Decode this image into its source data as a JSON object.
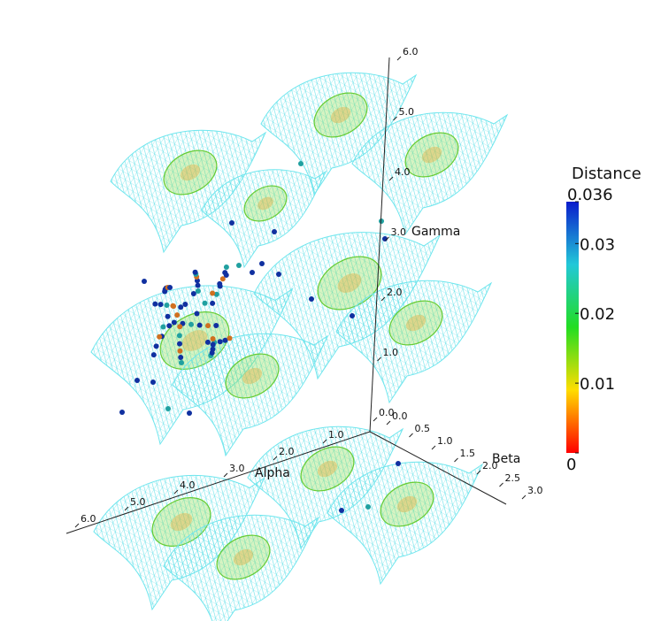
{
  "axes": {
    "alpha": {
      "label": "Alpha",
      "ticks": [
        {
          "value": 1,
          "label": "1.0"
        },
        {
          "value": 2,
          "label": "2.0"
        },
        {
          "value": 3,
          "label": "3.0"
        },
        {
          "value": 4,
          "label": "4.0"
        },
        {
          "value": 5,
          "label": "5.0"
        },
        {
          "value": 6,
          "label": "6.0"
        }
      ]
    },
    "beta": {
      "label": "Beta",
      "ticks": [
        {
          "value": 0,
          "label": "0.0"
        },
        {
          "value": 0.5,
          "label": "0.5"
        },
        {
          "value": 1,
          "label": "1.0"
        },
        {
          "value": 1.5,
          "label": "1.5"
        },
        {
          "value": 2,
          "label": "2.0"
        },
        {
          "value": 2.5,
          "label": "2.5"
        },
        {
          "value": 3,
          "label": "3.0"
        }
      ]
    },
    "gamma": {
      "label": "Gamma",
      "ticks": [
        {
          "value": 0,
          "label": "0.0"
        },
        {
          "value": 1,
          "label": "1.0"
        },
        {
          "value": 2,
          "label": "2.0"
        },
        {
          "value": 3,
          "label": "3.0"
        },
        {
          "value": 4,
          "label": "4.0"
        },
        {
          "value": 5,
          "label": "5.0"
        },
        {
          "value": 6,
          "label": "6.0"
        }
      ]
    }
  },
  "colorbar": {
    "title": "Distance",
    "range": [
      0,
      0.036
    ],
    "ticks": [
      0,
      0.01,
      0.02,
      0.03,
      0.036
    ]
  }
}
